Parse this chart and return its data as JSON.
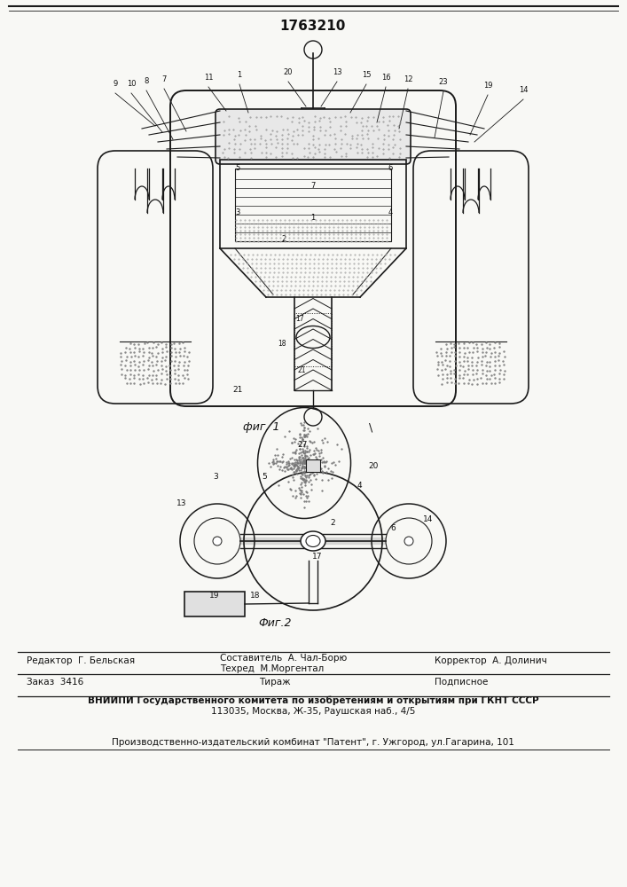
{
  "patent_number": "1763210",
  "bg_color": "#f8f8f5",
  "fig1_caption": "фиг. 1",
  "fig2_caption": "Фиг.2",
  "footer_line1_left": "Редактор  Г. Бельская",
  "footer_line1_mid1": "Составитель  А. Чал-Борю",
  "footer_line1_mid2": "Техред  М.Моргентал",
  "footer_line1_right": "Корректор  А. Долинич",
  "footer_line2_left": "Заказ  3416",
  "footer_line2_mid": "Тираж",
  "footer_line2_right": "Подписное",
  "footer_line3": "ВНИИПИ Государственного комитета по изобретениям и открытиям при ГКНТ СССР",
  "footer_line4": "113035, Москва, Ж-35, Раушская наб., 4/5",
  "footer_line5": "Производственно-издательский комбинат \"Патент\", г. Ужгород, ул.Гагарина, 101",
  "text_color": "#111111",
  "line_color": "#1a1a1a"
}
